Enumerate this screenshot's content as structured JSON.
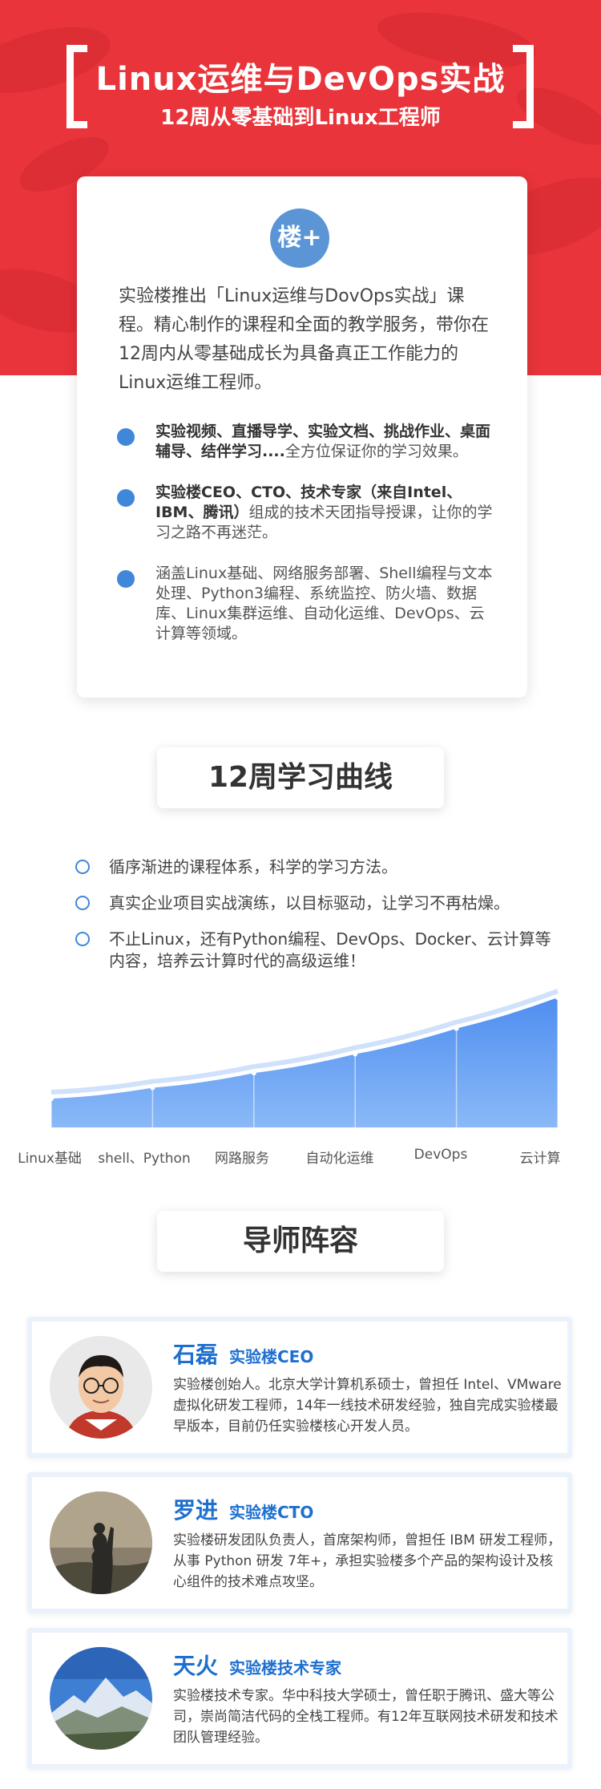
{
  "hero": {
    "title": "Linux运维与DevOps实战",
    "subtitle": "12周从零基础到Linux工程师"
  },
  "intro": {
    "logo_text": "楼+",
    "text": "实验楼推出「Linux运维与DovOps实战」课程。精心制作的课程和全面的教学服务，带你在12周内从零基础成长为具备真正工作能力的Linux运维工程师。",
    "bullets": [
      {
        "bold": "实验视频、直播导学、实验文档、挑战作业、桌面辅导、结伴学习....",
        "text": "全方位保证你的学习效果。"
      },
      {
        "bold": "实验楼CEO、CTO、技术专家（来自Intel、IBM、腾讯）",
        "text": "组成的技术天团指导授课，让你的学习之路不再迷茫。"
      },
      {
        "bold": "",
        "text": "涵盖Linux基础、网络服务部署、Shell编程与文本处理、Python3编程、系统监控、防火墙、数据库、Linux集群运维、自动化运维、DevOps、云计算等领域。"
      }
    ]
  },
  "curve_section": {
    "title": "12周学习曲线",
    "points": [
      "循序渐进的课程体系，科学的学习方法。",
      "真实企业项目实战演练，以目标驱动，让学习不再枯燥。",
      "不止Linux，还有Python编程、DevOps、Docker、云计算等内容，培养云计算时代的高级运维！"
    ],
    "stages": [
      "Linux基础",
      "shell、Python",
      "网路服务",
      "自动化运维",
      "DevOps",
      "云计算"
    ]
  },
  "chart_data": {
    "type": "area",
    "categories": [
      "Linux基础",
      "shell、Python",
      "网路服务",
      "自动化运维",
      "DevOps",
      "云计算"
    ],
    "values": [
      1,
      1.8,
      2.9,
      4.3,
      6.2,
      8.5
    ],
    "title": "",
    "xlabel": "",
    "ylabel": "",
    "colors": {
      "fill_top": "#4f8ef0",
      "fill_bottom": "#8ab9f7",
      "line": "#cfe1fb"
    }
  },
  "mentor_section": {
    "title": "导师阵容",
    "mentors": [
      {
        "name": "石磊",
        "role": "实验楼CEO",
        "desc": "实验楼创始人。北京大学计算机系硕士，曾担任 Intel、VMware 虚拟化研发工程师，14年一线技术研发经验，独自完成实验楼最早版本，目前仍任实验楼核心开发人员。",
        "avatar": "person-glasses"
      },
      {
        "name": "罗进",
        "role": "实验楼CTO",
        "desc": "实验楼研发团队负责人，首席架构师，曾担任 IBM 研发工程师，从事 Python 研发 7年+，承担实验楼多个产品的架构设计及核心组件的技术难点攻坚。",
        "avatar": "silhouette-landscape"
      },
      {
        "name": "天火",
        "role": "实验楼技术专家",
        "desc": "实验楼技术专家。华中科技大学硕士，曾任职于腾讯、盛大等公司，崇尚简洁代码的全栈工程师。有12年互联网技术研发和技术团队管理经验。",
        "avatar": "mountain-landscape"
      }
    ]
  },
  "colors": {
    "hero_red": "#e8343a",
    "accent_blue": "#3f87d9",
    "name_blue": "#1e6fcf"
  }
}
